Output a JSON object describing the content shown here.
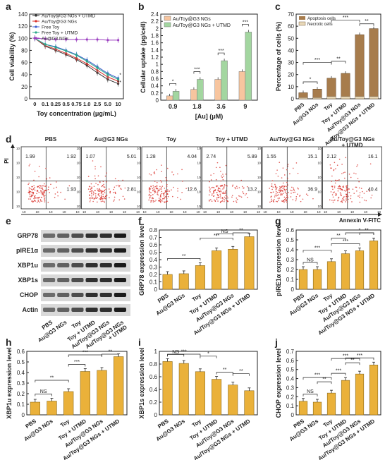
{
  "panel_letters": [
    "a",
    "b",
    "c",
    "d",
    "e",
    "f",
    "g",
    "h",
    "i",
    "j"
  ],
  "colors": {
    "bar": "#eab13a",
    "bar_stroke": "#8a6a1f",
    "orange": "#f7c59f",
    "green": "#a3d6a0",
    "tan": "#a77c4c",
    "ink": "#222222",
    "dot": "#d9312b"
  },
  "chart_data": [
    {
      "id": "a",
      "type": "line",
      "ylabel": "Cell viability (%)",
      "xlabel": "Toy concentration (μg/mL)",
      "categories": [
        "0",
        "0.1",
        "0.25",
        "0.5",
        "0.75",
        "1.0",
        "2.5",
        "5.0",
        "10"
      ],
      "ylim": [
        0,
        140
      ],
      "yticks": [
        0,
        20,
        40,
        60,
        80,
        100,
        120,
        140
      ],
      "series": [
        {
          "name": "Au/Toy@G3 NGs + UTMD",
          "color": "#333333",
          "marker": "square",
          "values": [
            100,
            87,
            80,
            73,
            65,
            55,
            43,
            32,
            25
          ]
        },
        {
          "name": "Au/Toy@G3 NGs",
          "color": "#d9312b",
          "marker": "circle",
          "values": [
            100,
            88,
            82,
            75,
            67,
            58,
            47,
            36,
            29
          ]
        },
        {
          "name": "Free Toy",
          "color": "#3f5fd0",
          "marker": "triangle",
          "values": [
            100,
            90,
            86,
            80,
            73,
            64,
            53,
            42,
            34
          ]
        },
        {
          "name": "Free Toy + UTMD",
          "color": "#2ea88a",
          "marker": "down-triangle",
          "values": [
            100,
            90,
            85,
            79,
            72,
            62,
            51,
            40,
            32
          ]
        },
        {
          "name": "Au@G3 NGs",
          "color": "#9b3fc0",
          "marker": "diamond",
          "values": [
            100,
            99,
            98,
            98,
            98,
            98,
            98,
            97,
            97
          ]
        }
      ],
      "annotations": [
        "**",
        "*"
      ]
    },
    {
      "id": "b",
      "type": "bar",
      "ylabel": "Cellular uptake (pg/cell)",
      "xlabel": "[Au] (μM)",
      "categories": [
        "0.9",
        "1.8",
        "3.6",
        "9"
      ],
      "ylim": [
        0,
        2.4
      ],
      "yticks": [
        0,
        0.2,
        0.4,
        0.6,
        0.8,
        1.0,
        1.2,
        1.4,
        1.6,
        1.8,
        2.0,
        2.2,
        2.4
      ],
      "series": [
        {
          "name": "Au/Toy@G3 NGs",
          "values": [
            0.12,
            0.3,
            0.58,
            0.8
          ]
        },
        {
          "name": "Au/Toy@G3 NGs + UTMD",
          "values": [
            0.25,
            0.58,
            1.1,
            1.9
          ]
        }
      ],
      "annotations": [
        "*",
        "***",
        "***",
        "***"
      ]
    },
    {
      "id": "d",
      "type": "bar",
      "ylabel": "Percentage of cells (%)",
      "categories": [
        "PBS",
        "Au@G3 NGs",
        "Toy",
        "Toy + UTMD",
        "Au/Toy@G3 NGs",
        "Au/Toy@G3 NGs\n+ UTMD"
      ],
      "ylim": [
        0,
        70
      ],
      "yticks": [
        0,
        10,
        20,
        30,
        40,
        50,
        60,
        70
      ],
      "series": [
        {
          "name": "Apoptosis cells",
          "values": [
            5,
            8,
            17,
            21,
            53,
            58
          ]
        },
        {
          "name": "Necrotic cells",
          "values": [
            1,
            1,
            2,
            2,
            2,
            2
          ]
        }
      ],
      "annotations": [
        "*",
        "***",
        "**",
        "***",
        "**"
      ]
    },
    {
      "id": "f",
      "type": "bar",
      "ylabel": "GRP78 expression level",
      "ylim": [
        0,
        0.8
      ],
      "yticks": [
        0,
        0.1,
        0.2,
        0.3,
        0.4,
        0.5,
        0.6,
        0.7,
        0.8
      ],
      "categories": [
        "PBS",
        "Au@G3 NGs",
        "Toy",
        "Toy + UTMD",
        "Au/Toy@G3 NGs",
        "Au/Toy@G3 NGs\n+ UTMD"
      ],
      "values": [
        0.2,
        0.21,
        0.32,
        0.52,
        0.54,
        0.71
      ],
      "annotations": [
        "**",
        "***",
        "NS",
        "**"
      ]
    },
    {
      "id": "g",
      "type": "bar",
      "ylabel": "pIRE1α expression level",
      "ylim": [
        0,
        0.6
      ],
      "yticks": [
        0,
        0.1,
        0.2,
        0.3,
        0.4,
        0.5,
        0.6
      ],
      "categories": [
        "PBS",
        "Au@G3 NGs",
        "Toy",
        "Toy + UTMD",
        "Au/Toy@G3 NGs",
        "Au/Toy@G3 NGs\n+ UTMD"
      ],
      "values": [
        0.2,
        0.2,
        0.28,
        0.36,
        0.39,
        0.49
      ],
      "annotations": [
        "NS",
        "***",
        "**",
        "***",
        "*",
        "**"
      ]
    },
    {
      "id": "h",
      "type": "bar",
      "ylabel": "XBP1u expression level",
      "ylim": [
        0,
        0.6
      ],
      "yticks": [
        0,
        0.1,
        0.2,
        0.3,
        0.4,
        0.5,
        0.6
      ],
      "categories": [
        "PBS",
        "Au@G3 NGs",
        "Toy",
        "Toy + UTMD",
        "Au/Toy@G3 NGs",
        "Au/Toy@G3 NGs\n+ UTMD"
      ],
      "values": [
        0.12,
        0.13,
        0.22,
        0.41,
        0.42,
        0.55
      ],
      "annotations": [
        "NS",
        "**",
        "***",
        "***",
        "**"
      ]
    },
    {
      "id": "i",
      "type": "bar",
      "ylabel": "XBP1s expression level",
      "ylim": [
        0,
        1.0
      ],
      "yticks": [
        0,
        0.2,
        0.4,
        0.6,
        0.8,
        1.0
      ],
      "categories": [
        "PBS",
        "Au@G3 NGs",
        "Toy",
        "Toy + UTMD",
        "Au/Toy@G3 NGs",
        "Au/Toy@G3 NGs\n+ UTMD"
      ],
      "values": [
        0.84,
        0.81,
        0.68,
        0.56,
        0.47,
        0.38
      ],
      "annotations": [
        "NS",
        "***",
        "*",
        "**",
        "**"
      ]
    },
    {
      "id": "j",
      "type": "bar",
      "ylabel": "CHOP expression level",
      "ylim": [
        0,
        0.7
      ],
      "yticks": [
        0,
        0.1,
        0.2,
        0.3,
        0.4,
        0.5,
        0.6,
        0.7
      ],
      "categories": [
        "PBS",
        "Au@G3 NGs",
        "Toy",
        "Toy + UTMD",
        "Au/Toy@G3 NGs",
        "Au/Toy@G3 NGs\n+ UTMD"
      ],
      "values": [
        0.15,
        0.14,
        0.24,
        0.38,
        0.45,
        0.55
      ],
      "annotations": [
        "NS",
        "**",
        "***",
        "***",
        "**",
        "***",
        "***"
      ]
    }
  ],
  "flow": {
    "ylabel": "PI",
    "xlabel": "Annexin V-FITC",
    "ticks": [
      "10",
      "10",
      "10",
      "10",
      "10"
    ],
    "panels": [
      {
        "title": "PBS",
        "ul": "1.99",
        "ur": "1.92",
        "lr": "1.93"
      },
      {
        "title": "Au@G3 NGs",
        "ul": "1.07",
        "ur": "5.01",
        "lr": "2.81"
      },
      {
        "title": "Toy",
        "ul": "1.28",
        "ur": "4.04",
        "lr": "12.6"
      },
      {
        "title": "Toy + UTMD",
        "ul": "2.74",
        "ur": "5.89",
        "lr": "13.2"
      },
      {
        "title": "Au/Toy@G3 NGs",
        "ul": "1.55",
        "ur": "15.1",
        "lr": "36.9"
      },
      {
        "title": "Au/Toy@G3 NGs\n+ UTMD",
        "ul": "2.12",
        "ur": "16.1",
        "lr": "40.4"
      }
    ]
  },
  "blot": {
    "labels": [
      "GRP78",
      "pIRE1α",
      "XBP1u",
      "XBP1s",
      "CHOP",
      "Actin"
    ],
    "lanes": [
      "PBS",
      "Au@G3 NGs",
      "Toy",
      "Toy + UTMD",
      "Au/Toy@G3 NGs",
      "Au/Toy@G3 NGs\n+ UTMD"
    ]
  }
}
